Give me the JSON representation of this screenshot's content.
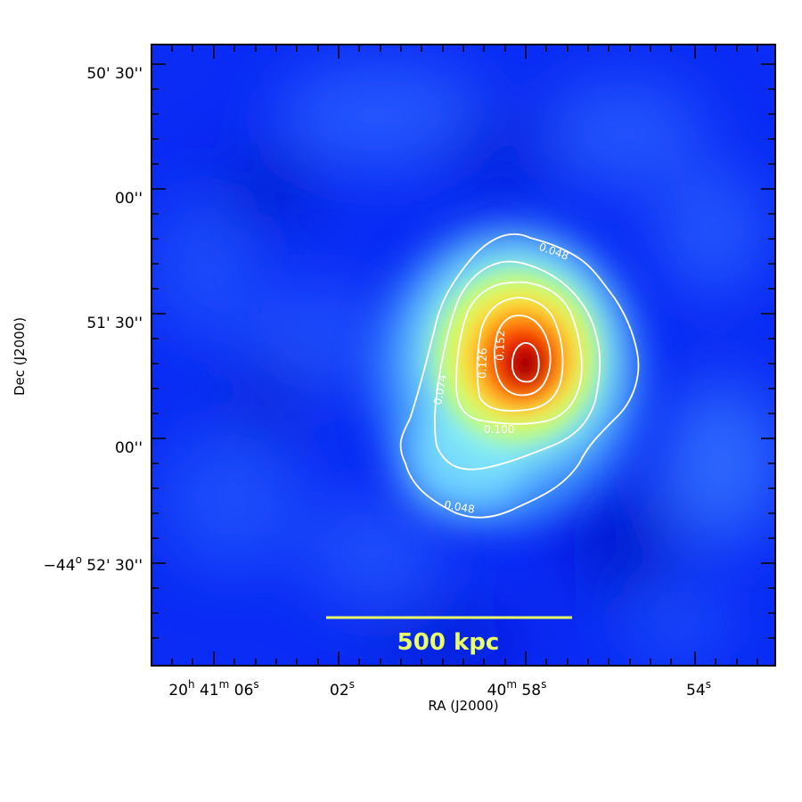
{
  "figure": {
    "colors": {
      "background": "#0026ff",
      "contour": "#ffffff",
      "scale_bar": "#e8ff6a",
      "frame": "#000000"
    },
    "colormap": "jet",
    "x_axis": {
      "title": "RA (J2000)",
      "ticks": [
        {
          "parts": [
            "20",
            "h",
            " 41",
            "m",
            " 06",
            "s"
          ]
        },
        {
          "parts": [
            "",
            "",
            "",
            "",
            "02",
            "s"
          ]
        },
        {
          "parts": [
            "",
            "",
            "40",
            "m",
            " 58",
            "s"
          ]
        },
        {
          "parts": [
            "",
            "",
            "",
            "",
            "54",
            "s"
          ]
        }
      ]
    },
    "y_axis": {
      "title": "Dec (J2000)",
      "ticks": [
        {
          "prefix": "",
          "deg": "",
          "text": "50' 30''"
        },
        {
          "prefix": "",
          "deg": "",
          "text": "00''"
        },
        {
          "prefix": "",
          "deg": "",
          "text": "51' 30''"
        },
        {
          "prefix": "",
          "deg": "",
          "text": "00''"
        },
        {
          "prefix": "−44",
          "deg": "o",
          "text": " 52' 30''"
        }
      ]
    },
    "contour_labels": [
      "0.048",
      "0.048",
      "0.074",
      "0.100",
      "0.126",
      "0.152"
    ],
    "scale_bar": {
      "label": "500 kpc"
    }
  }
}
